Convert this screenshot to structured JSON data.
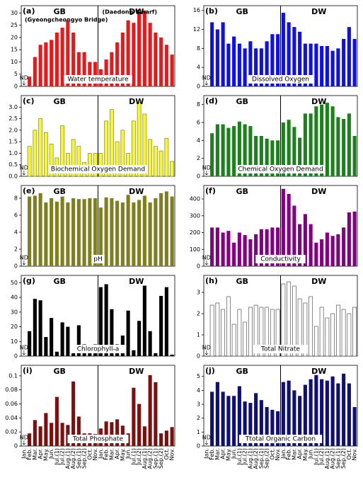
{
  "chart_data": [
    {
      "type": "bar",
      "label": "(a)",
      "groups": [
        "GB",
        "DW"
      ],
      "group_notes": [
        "(Gyeongcheongyo Bridge)",
        "(Daedong Wharf)"
      ],
      "title": "Water temperature",
      "nd_label": "ND",
      "color": "#e41a1c",
      "ylim": [
        0,
        33
      ],
      "yticks": [
        0,
        5,
        10,
        15,
        20,
        25,
        30
      ],
      "values": [
        null,
        4,
        12,
        17,
        18,
        19,
        22,
        24,
        27,
        22,
        14,
        14,
        10,
        10,
        7,
        11,
        14,
        18,
        22,
        27,
        26,
        30,
        31,
        26,
        22,
        20,
        17,
        13
      ]
    },
    {
      "type": "bar",
      "label": "(b)",
      "groups": [
        "GB",
        "DW"
      ],
      "title": "Dissolved Oxygen",
      "nd_label": "ND",
      "color": "#1010e0",
      "ylim": [
        0,
        17
      ],
      "yticks": [
        0,
        4,
        8,
        12,
        16
      ],
      "values": [
        null,
        13.5,
        12,
        13.5,
        9,
        10.5,
        9,
        8,
        9.5,
        8,
        8,
        9.5,
        11,
        11,
        15.5,
        13.5,
        12.5,
        11.5,
        9,
        9,
        9,
        8.5,
        8.5,
        7.5,
        8,
        10,
        12.5,
        10
      ]
    },
    {
      "type": "bar",
      "label": "(c)",
      "groups": [
        "GB",
        "DW"
      ],
      "title": "Biochemical Oxygen Demand",
      "nd_label": "ND",
      "color": "#f5f53c",
      "stroke": "#888820",
      "ylim": [
        0,
        3.5
      ],
      "yticks": [
        {
          "value": 0,
          "label": "0.0"
        },
        0.5,
        {
          "value": 1,
          "label": "1.0"
        },
        1.5,
        {
          "value": 2,
          "label": "2.0"
        },
        2.5,
        {
          "value": 3,
          "label": "3.0"
        }
      ],
      "values": [
        null,
        1.3,
        2.0,
        2.5,
        1.9,
        1.4,
        0.8,
        2.2,
        1.0,
        1.6,
        1.3,
        0.6,
        1.0,
        1.0,
        1.0,
        2.4,
        2.9,
        1.5,
        2.0,
        1.0,
        2.4,
        3.2,
        2.7,
        1.6,
        1.3,
        1.1,
        1.65,
        0.65
      ]
    },
    {
      "type": "bar",
      "label": "(d)",
      "groups": [
        "GB",
        "DW"
      ],
      "title": "Chemical Oxygen Demand",
      "nd_label": "ND",
      "color": "#1f7f1f",
      "ylim": [
        0,
        9
      ],
      "yticks": [
        0,
        2,
        4,
        6,
        8
      ],
      "values": [
        null,
        4.8,
        5.8,
        5.8,
        5.4,
        5.6,
        6.1,
        5.8,
        5.6,
        4.5,
        4.5,
        4.2,
        4.0,
        4.0,
        6.0,
        6.3,
        5.5,
        4.3,
        7.0,
        7.0,
        7.8,
        8.0,
        8.2,
        7.8,
        6.6,
        6.4,
        7.0,
        4.5
      ]
    },
    {
      "type": "bar",
      "label": "(e)",
      "groups": [
        "GB",
        "DW"
      ],
      "title": "pH",
      "nd_label": "ND",
      "color": "#7f7f1f",
      "ylim": [
        0,
        9.5
      ],
      "yticks": [
        0,
        2,
        4,
        6,
        8
      ],
      "values": [
        null,
        8.2,
        8.3,
        8.6,
        7.5,
        8.0,
        7.6,
        8.2,
        7.5,
        8.0,
        7.9,
        7.9,
        8.0,
        8.0,
        6.9,
        8.1,
        8.0,
        7.7,
        7.5,
        8.4,
        7.5,
        7.8,
        8.3,
        7.5,
        8.0,
        8.6,
        8.8,
        8.2
      ]
    },
    {
      "type": "bar",
      "label": "(f)",
      "groups": [
        "GB",
        "DW"
      ],
      "title": "Conductivity",
      "nd_label": "ND",
      "color": "#800080",
      "ylim": [
        0,
        480
      ],
      "yticks": [
        0,
        100,
        200,
        300,
        400
      ],
      "values": [
        null,
        230,
        230,
        200,
        210,
        140,
        200,
        185,
        160,
        190,
        220,
        220,
        230,
        230,
        460,
        430,
        360,
        250,
        310,
        250,
        140,
        160,
        200,
        180,
        190,
        230,
        320,
        325
      ]
    },
    {
      "type": "bar",
      "label": "(g)",
      "groups": [
        "GB",
        "DW"
      ],
      "title": "Chlorophyll-a",
      "nd_label": "ND",
      "color": "#000000",
      "ylim": [
        0,
        55
      ],
      "yticks": [
        0,
        10,
        20,
        30,
        40,
        50
      ],
      "values": [
        null,
        17,
        39,
        38,
        13,
        26,
        3,
        23,
        20,
        3,
        21,
        8,
        7,
        8,
        47,
        49,
        32,
        8,
        14,
        31,
        4,
        24,
        48,
        17,
        2,
        41,
        47,
        1
      ]
    },
    {
      "type": "bar",
      "label": "(h)",
      "groups": [
        "GB",
        "DW"
      ],
      "title": "Total Nitrate",
      "nd_label": "ND",
      "color": "#ffffff",
      "stroke": "#555555",
      "ylim": [
        0,
        3.8
      ],
      "yticks": [
        0,
        1,
        2,
        3
      ],
      "values": [
        null,
        2.4,
        2.5,
        2.2,
        2.8,
        1.5,
        2.2,
        1.6,
        2.3,
        2.4,
        2.3,
        2.3,
        2.2,
        2.2,
        3.4,
        3.5,
        3.3,
        2.7,
        2.5,
        2.8,
        1.4,
        2.3,
        1.8,
        2.0,
        2.4,
        2.2,
        2.0,
        2.3
      ]
    },
    {
      "type": "bar",
      "label": "(i)",
      "groups": [
        "GB",
        "DW"
      ],
      "title": "Total Phosphate",
      "nd_label": "ND",
      "color": "#7a1010",
      "ylim": [
        0,
        0.115
      ],
      "yticks": [
        0,
        0.02,
        0.04,
        0.06,
        0.08,
        0.1
      ],
      "categories": [
        "Jan.",
        "Feb.",
        "Mar.",
        "Apr.",
        "May.",
        "Jun.",
        "Jul.(1)",
        "Jul.(2)",
        "Aug.(1)",
        "Aug.(2)",
        "Sep.(1)",
        "Sep.(2)",
        "Oct.",
        "Nov.",
        "Jan.",
        "Feb.",
        "Mar.",
        "Apr.",
        "May.",
        "Jun.",
        "Jul.(1)",
        "Jul.(2)",
        "Aug.(1)",
        "Aug.(2)",
        "Sep.(1)",
        "Sep.(2)",
        "Oct.",
        "Nov."
      ],
      "values": [
        null,
        0.018,
        0.037,
        0.028,
        0.047,
        0.033,
        0.07,
        0.033,
        0.03,
        0.092,
        0.042,
        0.018,
        0.018,
        0.017,
        0.025,
        0.035,
        0.034,
        0.038,
        0.029,
        0.018,
        0.083,
        0.06,
        0.028,
        0.101,
        0.091,
        0.018,
        0.022,
        0.027
      ]
    },
    {
      "type": "bar",
      "label": "(j)",
      "groups": [
        "GB",
        "DW"
      ],
      "title": "Ttotal Organic Carbon",
      "nd_label": "ND",
      "color": "#101070",
      "ylim": [
        0,
        5.8
      ],
      "yticks": [
        0,
        1,
        2,
        3,
        4,
        5
      ],
      "categories": [
        "Jan.",
        "Feb.",
        "Mar.",
        "Apr.",
        "May.",
        "Jun.",
        "Jul.(1)",
        "Jul.(2)",
        "Aug.(1)",
        "Aug.(2)",
        "Sep.(1)",
        "Sep.(2)",
        "Oct.",
        "Nov.",
        "Jan.",
        "Feb.",
        "Mar.",
        "Apr.",
        "May.",
        "Jun.",
        "Jul.(1)",
        "Jul.(2)",
        "Aug.(1)",
        "Aug.(2)",
        "Sep.(1)",
        "Sep.(2)",
        "Oct.",
        "Nov."
      ],
      "values": [
        null,
        3.9,
        4.6,
        3.9,
        3.6,
        3.6,
        4.3,
        3.2,
        3.1,
        3.8,
        3.3,
        2.8,
        2.6,
        2.5,
        4.6,
        4.7,
        4.0,
        3.6,
        4.4,
        4.8,
        5.1,
        4.8,
        4.7,
        5.0,
        4.5,
        5.2,
        4.5,
        2.8
      ]
    }
  ]
}
